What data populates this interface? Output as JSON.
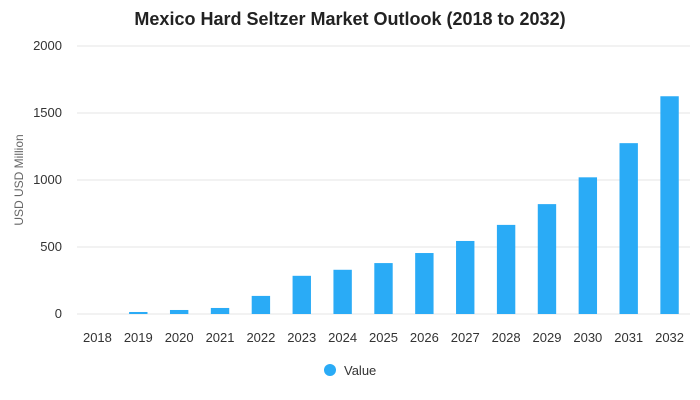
{
  "chart_data": {
    "type": "bar",
    "title": "Mexico Hard Seltzer Market Outlook (2018 to 2032)",
    "xlabel": "",
    "ylabel": "USD USD Million",
    "ylim": [
      0,
      2000
    ],
    "yticks": [
      "0",
      "500",
      "1000",
      "1500",
      "2000"
    ],
    "categories": [
      "2018",
      "2019",
      "2020",
      "2021",
      "2022",
      "2023",
      "2024",
      "2025",
      "2026",
      "2027",
      "2028",
      "2029",
      "2030",
      "2031",
      "2032"
    ],
    "series": [
      {
        "name": "Value",
        "color": "#2aabf6",
        "values": [
          0,
          15,
          30,
          45,
          135,
          285,
          330,
          380,
          455,
          545,
          665,
          820,
          1020,
          1275,
          1625
        ]
      }
    ],
    "grid": true,
    "legend_position": "bottom-center"
  }
}
